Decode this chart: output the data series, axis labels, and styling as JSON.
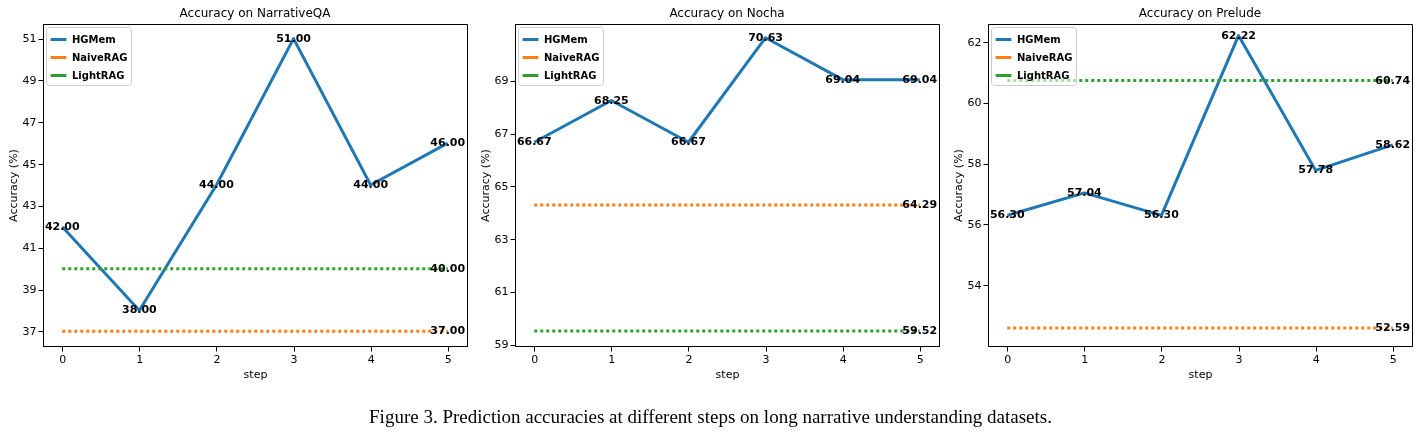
{
  "chart_data": [
    {
      "type": "line",
      "title": "Accuracy on NarrativeQA",
      "xlabel": "step",
      "ylabel": "Accuracy (%)",
      "x": [
        0,
        1,
        2,
        3,
        4,
        5
      ],
      "xlim": [
        -0.25,
        5.25
      ],
      "xticks": [
        0,
        1,
        2,
        3,
        4,
        5
      ],
      "ylim": [
        36.3,
        51.7
      ],
      "yticks": [
        37,
        39,
        41,
        43,
        45,
        47,
        49,
        51
      ],
      "grid": false,
      "legend": "top left",
      "marker": "none",
      "series": [
        {
          "name": "HGMem",
          "color": "#1f77b4",
          "line_style": "solid",
          "values": [
            42,
            38,
            44,
            51,
            44,
            46
          ],
          "value_labels": [
            "42.00",
            "38.00",
            "44.00",
            "51.00",
            "44.00",
            "46.00"
          ]
        },
        {
          "name": "NaiveRAG",
          "color": "#ff7f0e",
          "line_style": "dotted",
          "values": [
            37,
            37,
            37,
            37,
            37,
            37
          ],
          "value_labels": [
            null,
            null,
            null,
            null,
            null,
            "37.00"
          ]
        },
        {
          "name": "LightRAG",
          "color": "#2ca02c",
          "line_style": "dotted",
          "values": [
            40,
            40,
            40,
            40,
            40,
            40
          ],
          "value_labels": [
            null,
            null,
            null,
            null,
            null,
            "40.00"
          ]
        }
      ]
    },
    {
      "type": "line",
      "title": "Accuracy on Nocha",
      "xlabel": "step",
      "ylabel": "Accuracy (%)",
      "x": [
        0,
        1,
        2,
        3,
        4,
        5
      ],
      "xlim": [
        -0.25,
        5.25
      ],
      "xticks": [
        0,
        1,
        2,
        3,
        4,
        5
      ],
      "ylim": [
        58.95,
        71.15
      ],
      "yticks": [
        59,
        61,
        63,
        65,
        67,
        69
      ],
      "grid": false,
      "legend": "top left",
      "marker": "none",
      "annotations": [
        "Figure 3. Prediction accuracies at different steps on long narrative understanding datasets."
      ],
      "series": [
        {
          "name": "HGMem",
          "color": "#1f77b4",
          "line_style": "solid",
          "values": [
            66.67,
            68.25,
            66.67,
            70.63,
            69.04,
            69.04
          ],
          "value_labels": [
            "66.67",
            "68.25",
            "66.67",
            "70.63",
            "69.04",
            "69.04"
          ]
        },
        {
          "name": "NaiveRAG",
          "color": "#ff7f0e",
          "line_style": "dotted",
          "values": [
            64.29,
            64.29,
            64.29,
            64.29,
            64.29,
            64.29
          ],
          "value_labels": [
            null,
            null,
            null,
            null,
            null,
            "64.29"
          ]
        },
        {
          "name": "LightRAG",
          "color": "#2ca02c",
          "line_style": "dotted",
          "values": [
            59.52,
            59.52,
            59.52,
            59.52,
            59.52,
            59.52
          ],
          "value_labels": [
            null,
            null,
            null,
            null,
            null,
            "59.52"
          ]
        }
      ]
    },
    {
      "type": "line",
      "title": "Accuracy on Prelude",
      "xlabel": "step",
      "ylabel": "Accuracy (%)",
      "x": [
        0,
        1,
        2,
        3,
        4,
        5
      ],
      "xlim": [
        -0.25,
        5.25
      ],
      "xticks": [
        0,
        1,
        2,
        3,
        4,
        5
      ],
      "ylim": [
        52.0,
        62.6
      ],
      "yticks": [
        54,
        56,
        58,
        60,
        62
      ],
      "grid": false,
      "legend": "top left",
      "marker": "none",
      "series": [
        {
          "name": "HGMem",
          "color": "#1f77b4",
          "line_style": "solid",
          "values": [
            56.3,
            57.04,
            56.3,
            62.22,
            57.78,
            58.62
          ],
          "value_labels": [
            "56.30",
            "57.04",
            "56.30",
            "62.22",
            "57.78",
            "58.62"
          ]
        },
        {
          "name": "NaiveRAG",
          "color": "#ff7f0e",
          "line_style": "dotted",
          "values": [
            52.59,
            52.59,
            52.59,
            52.59,
            52.59,
            52.59
          ],
          "value_labels": [
            null,
            null,
            null,
            null,
            null,
            "52.59"
          ]
        },
        {
          "name": "LightRAG",
          "color": "#2ca02c",
          "line_style": "dotted",
          "values": [
            60.74,
            60.74,
            60.74,
            60.74,
            60.74,
            60.74
          ],
          "value_labels": [
            null,
            null,
            null,
            null,
            null,
            "60.74"
          ]
        }
      ]
    }
  ]
}
